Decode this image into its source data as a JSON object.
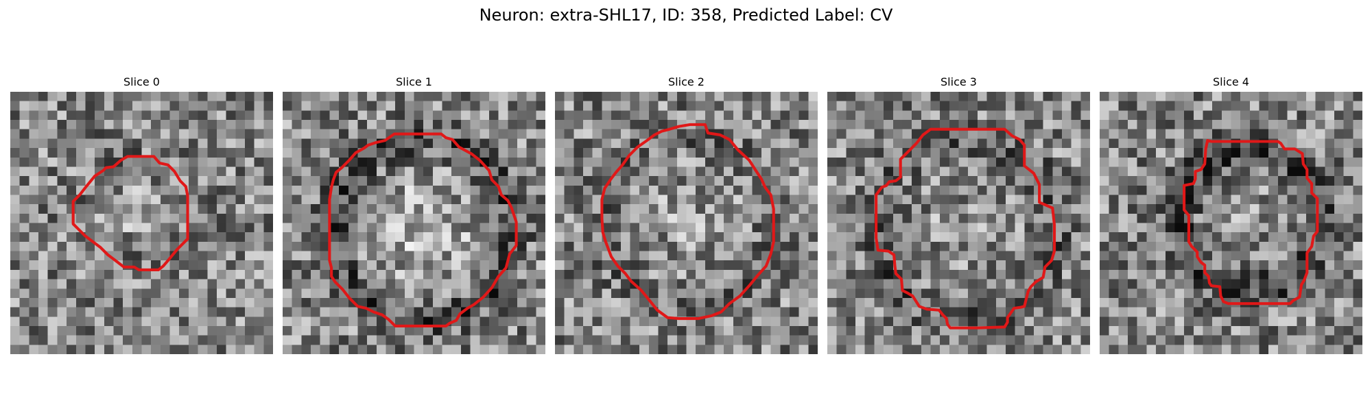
{
  "figure": {
    "title": "Neuron: extra-SHL17, ID: 358, Predicted Label: CV"
  },
  "slices": [
    {
      "title": "Slice 0"
    },
    {
      "title": "Slice 1"
    },
    {
      "title": "Slice 2"
    },
    {
      "title": "Slice 3"
    },
    {
      "title": "Slice 4"
    }
  ],
  "colors": {
    "contour": "#e01818",
    "background": "#ffffff"
  }
}
